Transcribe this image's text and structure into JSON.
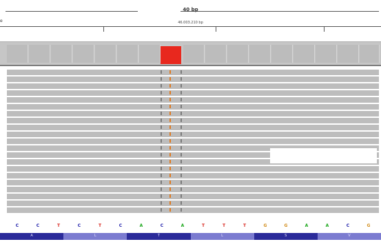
{
  "header": {
    "span_label": "40 bp",
    "position_label": "46.003.210 bp"
  },
  "ruler": {
    "marker": "e"
  },
  "sequence": [
    "C",
    "C",
    "T",
    "C",
    "T",
    "C",
    "A",
    "C",
    "A",
    "T",
    "T",
    "T",
    "G",
    "G",
    "A",
    "A",
    "C",
    "G"
  ],
  "sequence_colors": {
    "A": "#19a619",
    "C": "#1a1aa8",
    "G": "#d18d1c",
    "T": "#d8261e"
  },
  "mismatch_colors": {
    "reference_site": "#e8281e",
    "read_mark_orange": "#e07a1f",
    "read_mark_gray": "#7a7a7a"
  },
  "amino_acids": [
    "A",
    "L",
    "T",
    "L",
    "S",
    "V"
  ]
}
